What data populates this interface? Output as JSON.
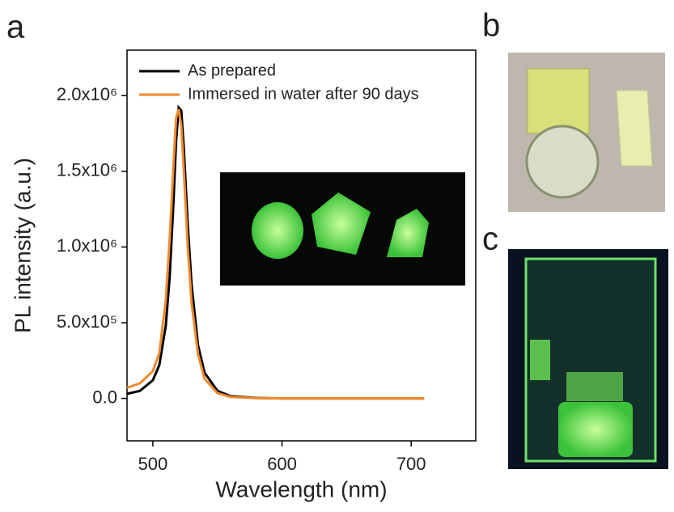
{
  "chart_data": {
    "type": "line",
    "panel_label": "a",
    "xlabel": "Wavelength (nm)",
    "ylabel": "PL intensity (a.u.)",
    "x": [
      480,
      490,
      500,
      505,
      510,
      513,
      516,
      518,
      520,
      522,
      524,
      527,
      530,
      535,
      540,
      550,
      560,
      580,
      600,
      650,
      710
    ],
    "series": [
      {
        "name": "As prepared",
        "color": "#000000",
        "values": [
          30000,
          50000,
          120000,
          220000,
          480000,
          800000,
          1300000,
          1700000,
          1920000,
          1900000,
          1650000,
          1150000,
          750000,
          350000,
          170000,
          50000,
          15000,
          3000,
          0,
          0,
          0
        ]
      },
      {
        "name": "Immersed in water after 90 days",
        "color": "#f08a2c",
        "values": [
          70000,
          100000,
          180000,
          300000,
          650000,
          1050000,
          1550000,
          1850000,
          1910000,
          1800000,
          1500000,
          1000000,
          630000,
          290000,
          130000,
          35000,
          10000,
          2000,
          0,
          0,
          0
        ]
      }
    ],
    "xlim": [
      480,
      750
    ],
    "xticks": [
      500,
      600,
      700
    ],
    "ylim": [
      -280000,
      2300000
    ],
    "yticks": [
      {
        "value": 0,
        "label": "0.0"
      },
      {
        "value": 500000,
        "label": "5.0x10⁵"
      },
      {
        "value": 1000000,
        "label": "1.0x10⁶"
      },
      {
        "value": 1500000,
        "label": "1.5x10⁶"
      },
      {
        "value": 2000000,
        "label": "2.0x10⁶"
      }
    ],
    "legend": "upper left"
  },
  "photos": [
    {
      "label": "b"
    },
    {
      "label": "c"
    }
  ]
}
